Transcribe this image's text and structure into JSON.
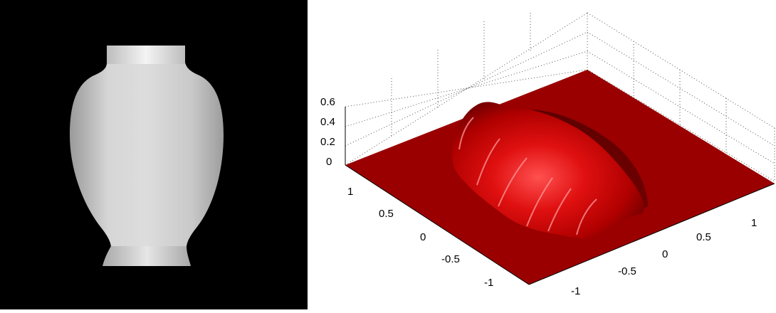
{
  "left_image": {
    "description_label": "",
    "background": "#000000",
    "object_color": "#d0d0d0"
  },
  "surface_plot": {
    "surface_color": "#8e0000",
    "highlight_color": "#ff2a2a",
    "axes": {
      "z_ticks": [
        "0",
        "0.2",
        "0.4",
        "0.6"
      ],
      "left_axis_ticks": [
        "1",
        "0.5",
        "0",
        "-0.5",
        "-1"
      ],
      "right_axis_ticks": [
        "1",
        "0.5",
        "0",
        "-0.5",
        "-1"
      ]
    },
    "grid": true
  }
}
